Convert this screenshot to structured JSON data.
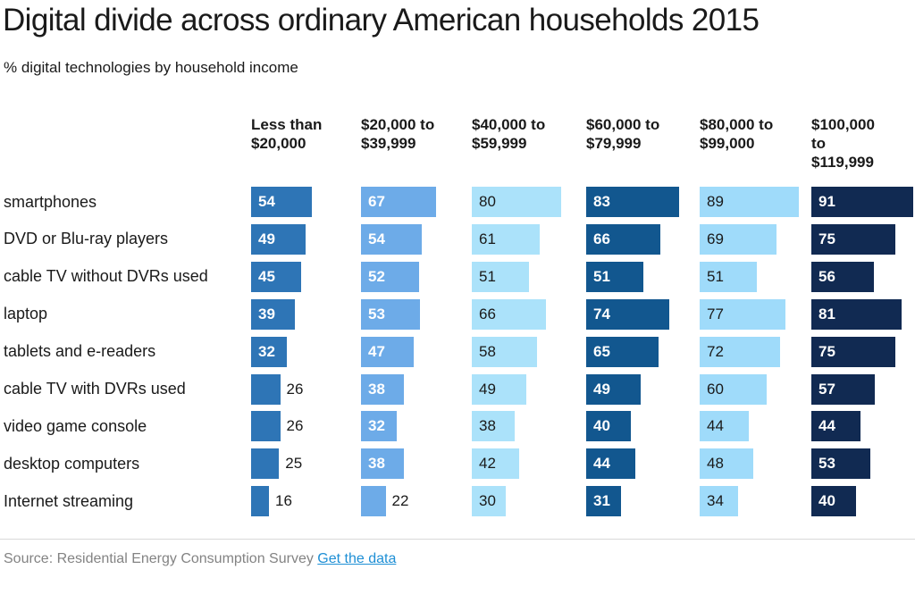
{
  "title": "Digital divide across ordinary American households 2015",
  "subtitle": "% digital technologies by household income",
  "source": {
    "prefix": "Source: Residential Energy Consumption Survey",
    "link_label": "Get the data",
    "link_color": "#1e8fd5",
    "text_color": "#838383"
  },
  "chart_data": {
    "type": "bar",
    "orientation": "horizontal",
    "title": "Digital divide across ordinary American households 2015",
    "subtitle": "% digital technologies by household income",
    "value_unit": "%",
    "xlim": [
      0,
      100
    ],
    "grid": false,
    "legend": "column-headers-on-top",
    "categories": [
      "smartphones",
      "DVD or Blu-ray players",
      "cable TV without DVRs used",
      "laptop",
      "tablets and e-readers",
      "cable TV with DVRs used",
      "video game console",
      "desktop computers",
      "Internet streaming"
    ],
    "series": [
      {
        "name": "Less than $20,000",
        "label_lines": [
          "Less than",
          "$20,000"
        ],
        "color": "#2e75b6",
        "value_label_color": "#ffffff",
        "values": [
          54,
          49,
          45,
          39,
          32,
          26,
          26,
          25,
          16
        ]
      },
      {
        "name": "$20,000 to $39,999",
        "label_lines": [
          "$20,000 to",
          "$39,999"
        ],
        "color": "#6dabe8",
        "value_label_color": "#ffffff",
        "values": [
          67,
          54,
          52,
          53,
          47,
          38,
          32,
          38,
          22
        ]
      },
      {
        "name": "$40,000 to $59,999",
        "label_lines": [
          "$40,000 to",
          "$59,999"
        ],
        "color": "#abe2fa",
        "value_label_color": "#1a1a1a",
        "values": [
          80,
          61,
          51,
          66,
          58,
          49,
          38,
          42,
          30
        ]
      },
      {
        "name": "$60,000 to $79,999",
        "label_lines": [
          "$60,000 to",
          "$79,999"
        ],
        "color": "#12578f",
        "value_label_color": "#ffffff",
        "values": [
          83,
          66,
          51,
          74,
          65,
          49,
          40,
          44,
          31
        ]
      },
      {
        "name": "$80,000 to $99,000",
        "label_lines": [
          "$80,000 to",
          "$99,000"
        ],
        "color": "#9fdbfa",
        "value_label_color": "#1a1a1a",
        "values": [
          89,
          69,
          51,
          77,
          72,
          60,
          44,
          48,
          34
        ]
      },
      {
        "name": "$100,000 to $119,999",
        "label_lines": [
          "$100,000",
          "to",
          "$119,999"
        ],
        "color": "#112a52",
        "value_label_color": "#ffffff",
        "values": [
          91,
          75,
          56,
          81,
          75,
          57,
          44,
          53,
          40
        ]
      }
    ],
    "inside_label_min_value": 30
  }
}
